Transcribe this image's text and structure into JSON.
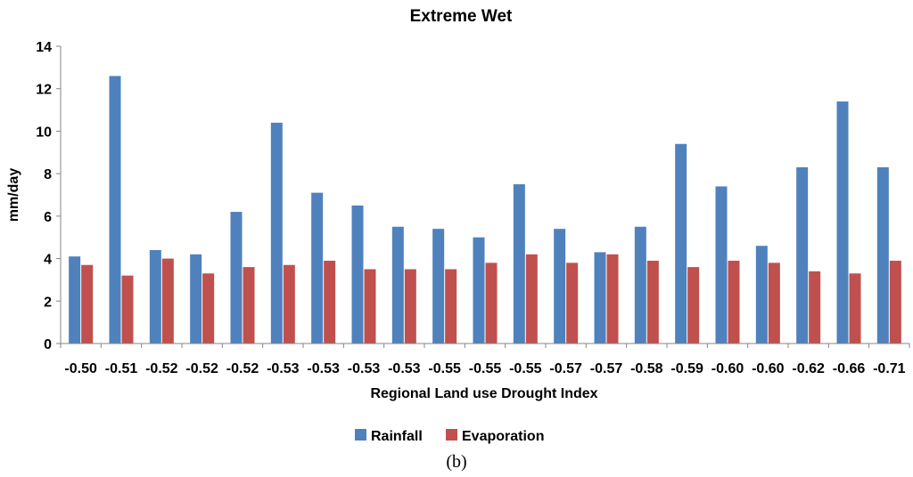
{
  "chart_data": {
    "type": "bar",
    "title": "Extreme Wet",
    "xlabel": "Regional Land use Drought Index",
    "ylabel": "mm/day",
    "ylim": [
      0,
      14
    ],
    "yticks": [
      "0",
      "2",
      "4",
      "6",
      "8",
      "10",
      "12",
      "14"
    ],
    "grid": false,
    "legend_position": "bottom",
    "categories": [
      "-0.50",
      "-0.51",
      "-0.52",
      "-0.52",
      "-0.52",
      "-0.53",
      "-0.53",
      "-0.53",
      "-0.53",
      "-0.55",
      "-0.55",
      "-0.55",
      "-0.57",
      "-0.57",
      "-0.58",
      "-0.59",
      "-0.60",
      "-0.60",
      "-0.62",
      "-0.66",
      "-0.71"
    ],
    "series": [
      {
        "name": "Rainfall",
        "color": "#4F81BD",
        "values": [
          4.1,
          12.6,
          4.4,
          4.2,
          6.2,
          10.4,
          7.1,
          6.5,
          5.5,
          5.4,
          5.0,
          7.5,
          5.4,
          4.3,
          5.5,
          9.4,
          7.4,
          4.6,
          8.3,
          11.4,
          8.3
        ]
      },
      {
        "name": "Evaporation",
        "color": "#C0504D",
        "values": [
          3.7,
          3.2,
          4.0,
          3.3,
          3.6,
          3.7,
          3.9,
          3.5,
          3.5,
          3.5,
          3.8,
          4.2,
          3.8,
          4.2,
          3.9,
          3.6,
          3.9,
          3.8,
          3.4,
          3.3,
          3.9
        ]
      }
    ]
  },
  "panel_label": "(b)"
}
